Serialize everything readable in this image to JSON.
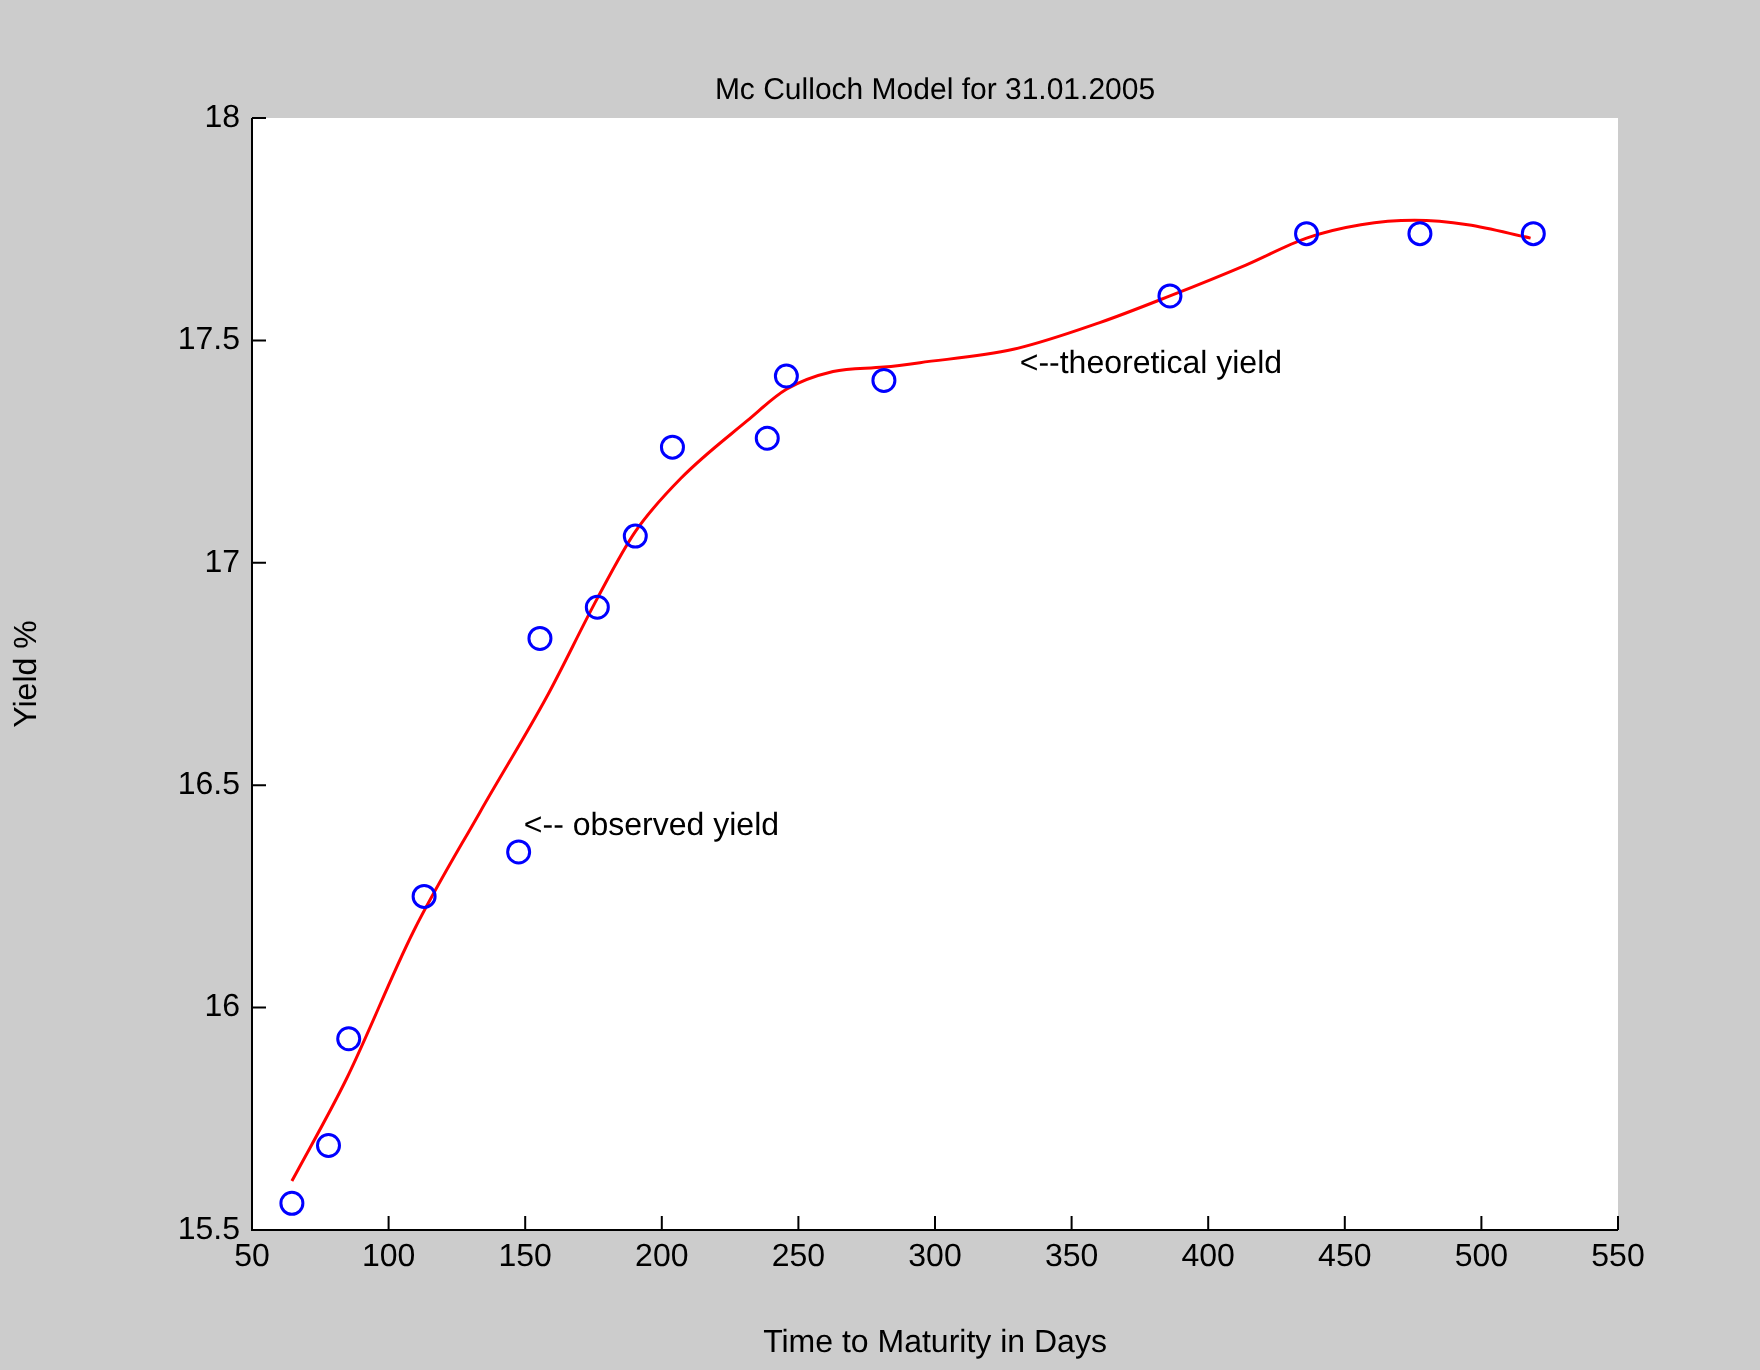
{
  "chart_data": {
    "type": "scatter",
    "title": "Mc Culloch Model for 31.01.2005",
    "xlabel": "Time to Maturity in Days",
    "ylabel": "Yield %",
    "xlim": [
      50,
      550
    ],
    "xticks": [
      50,
      100,
      150,
      200,
      250,
      300,
      350,
      400,
      450,
      500,
      550
    ],
    "ylim": [
      15.5,
      18
    ],
    "yticks": [
      15.5,
      16,
      16.5,
      17,
      17.5,
      18
    ],
    "grid": false,
    "legend": false,
    "annotations": [
      "<-- observed yield",
      "<--theoretical yield"
    ],
    "series": [
      {
        "type": "scatter",
        "marker": "circle",
        "color": "#0000ff",
        "x": [
          64.6,
          78,
          85.4,
          113,
          147.6,
          155.4,
          176.4,
          190.3,
          203.9,
          238.6,
          245.6,
          281.3,
          386,
          436,
          477.5,
          519
        ],
        "values": [
          15.56,
          15.69,
          15.93,
          16.25,
          16.35,
          16.83,
          16.9,
          17.06,
          17.26,
          17.28,
          17.42,
          17.41,
          17.6,
          17.74,
          17.74,
          17.74
        ]
      },
      {
        "type": "line",
        "marker": "none",
        "line_style": "solid",
        "color": "#ff0000",
        "x": [
          64.6,
          84.6,
          109,
          133.5,
          158,
          176.4,
          190.3,
          207,
          231.4,
          245.6,
          262.7,
          281.3,
          294.5,
          328.7,
          360.3,
          386,
          414,
          436,
          455.9,
          475.5,
          495,
          518
        ],
        "values": [
          15.61,
          15.84,
          16.17,
          16.44,
          16.7,
          16.92,
          17.07,
          17.19,
          17.32,
          17.39,
          17.43,
          17.44,
          17.45,
          17.48,
          17.54,
          17.6,
          17.67,
          17.73,
          17.76,
          17.77,
          17.76,
          17.73
        ]
      }
    ]
  }
}
